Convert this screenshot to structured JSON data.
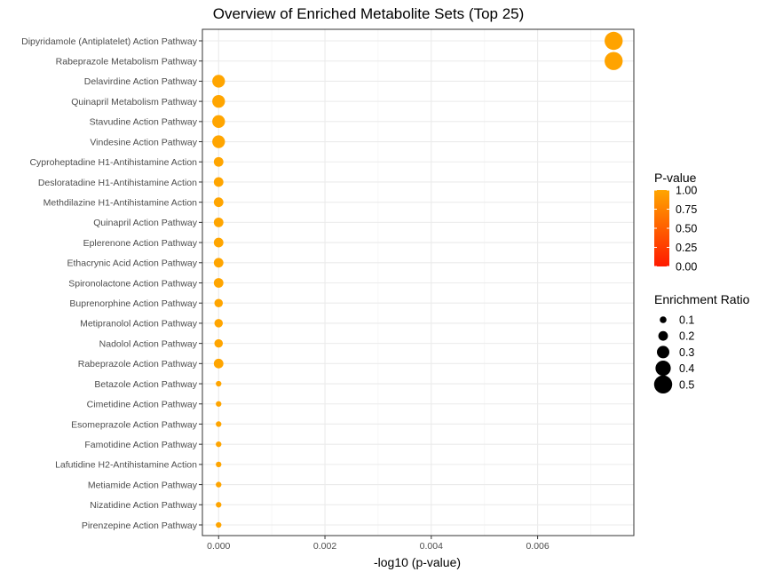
{
  "chart_data": {
    "type": "scatter",
    "title": "Overview of Enriched Metabolite Sets (Top 25)",
    "xlabel": "-log10 (p-value)",
    "ylabel": "",
    "xlim": [
      -0.000305,
      0.00781
    ],
    "x_ticks": [
      0.0,
      0.002,
      0.004,
      0.006
    ],
    "x_tick_labels": [
      "0.000",
      "0.002",
      "0.004",
      "0.006"
    ],
    "grid": true,
    "legend_position": "right",
    "categories": [
      "Dipyridamole (Antiplatelet) Action Pathway",
      "Rabeprazole Metabolism Pathway",
      "Delavirdine Action Pathway",
      "Quinapril Metabolism Pathway",
      "Stavudine Action Pathway",
      "Vindesine Action Pathway",
      "Cyproheptadine H1-Antihistamine Action",
      "Desloratadine H1-Antihistamine Action",
      "Methdilazine H1-Antihistamine Action",
      "Quinapril Action Pathway",
      "Eplerenone Action Pathway",
      "Ethacrynic Acid Action Pathway",
      "Spironolactone Action Pathway",
      "Buprenorphine Action Pathway",
      "Metipranolol Action Pathway",
      "Nadolol Action Pathway",
      "Rabeprazole Action Pathway",
      "Betazole Action Pathway",
      "Cimetidine Action Pathway",
      "Esomeprazole Action Pathway",
      "Famotidine Action Pathway",
      "Lafutidine H2-Antihistamine Action",
      "Metiamide Action Pathway",
      "Nizatidine Action Pathway",
      "Pirenzepine Action Pathway"
    ],
    "x": [
      0.00743,
      0.00743,
      0.0,
      0.0,
      0.0,
      0.0,
      0.0,
      0.0,
      0.0,
      0.0,
      0.0,
      0.0,
      0.0,
      0.0,
      0.0,
      0.0,
      0.0,
      0.0,
      0.0,
      0.0,
      0.0,
      0.0,
      0.0,
      0.0,
      0.0
    ],
    "p_value": [
      0.983,
      0.983,
      1.0,
      1.0,
      1.0,
      1.0,
      1.0,
      1.0,
      1.0,
      1.0,
      1.0,
      1.0,
      1.0,
      1.0,
      1.0,
      1.0,
      1.0,
      1.0,
      1.0,
      1.0,
      1.0,
      1.0,
      1.0,
      1.0,
      1.0
    ],
    "enrichment_ratio": [
      0.5,
      0.5,
      0.31,
      0.31,
      0.31,
      0.31,
      0.2,
      0.2,
      0.2,
      0.2,
      0.2,
      0.2,
      0.2,
      0.16,
      0.16,
      0.16,
      0.2,
      0.06,
      0.06,
      0.06,
      0.06,
      0.06,
      0.06,
      0.06,
      0.06
    ],
    "color_legend": {
      "title": "P-value",
      "ticks": [
        1.0,
        0.75,
        0.5,
        0.25,
        0.0
      ],
      "tick_labels": [
        "1.00",
        "0.75",
        "0.50",
        "0.25",
        "0.00"
      ],
      "low_color": "#ff1a00",
      "high_color": "#ffa500"
    },
    "size_legend": {
      "title": "Enrichment Ratio",
      "values": [
        0.1,
        0.2,
        0.3,
        0.4,
        0.5
      ],
      "labels": [
        "0.1",
        "0.2",
        "0.3",
        "0.4",
        "0.5"
      ]
    },
    "colors": {
      "panel_border": "#333333",
      "grid_major": "#ebebeb",
      "grid_minor": "#f5f5f5",
      "text": "#4d4d4d"
    }
  }
}
